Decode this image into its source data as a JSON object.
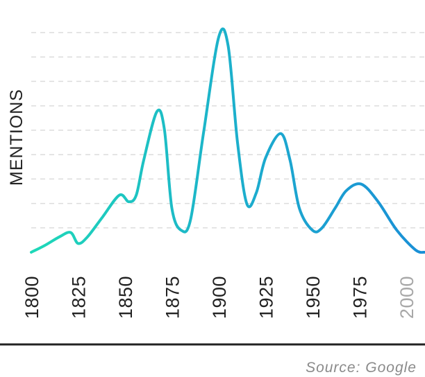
{
  "chart_data": {
    "type": "line",
    "ylabel": "MENTIONS",
    "source": "Source: Google",
    "x_ticks": [
      {
        "label": "1800",
        "value": 1800
      },
      {
        "label": "1825",
        "value": 1825
      },
      {
        "label": "1850",
        "value": 1850
      },
      {
        "label": "1875",
        "value": 1875
      },
      {
        "label": "1900",
        "value": 1900
      },
      {
        "label": "1925",
        "value": 1925
      },
      {
        "label": "1950",
        "value": 1950
      },
      {
        "label": "1975",
        "value": 1975
      },
      {
        "label": "2000",
        "value": 2000,
        "muted": true
      }
    ],
    "xlim": [
      1800,
      2010
    ],
    "ylim": [
      0,
      10
    ],
    "grid": true,
    "gradient_colors": [
      "#1ed8b8",
      "#1ca9cf",
      "#1a8fd6"
    ],
    "tick_color": "#222222",
    "muted_tick_color": "#a8a8a8",
    "series": [
      {
        "x": [
          1800,
          1807,
          1815,
          1821,
          1825,
          1830,
          1838,
          1847,
          1852,
          1856,
          1860,
          1867,
          1871,
          1875,
          1880,
          1885,
          1892,
          1900,
          1905,
          1910,
          1915,
          1920,
          1925,
          1933,
          1938,
          1943,
          1950,
          1955,
          1962,
          1968,
          1976,
          1985,
          1995,
          2005,
          2010
        ],
        "y": [
          0,
          0.3,
          0.7,
          0.9,
          0.4,
          0.7,
          1.6,
          2.6,
          2.3,
          2.6,
          4.2,
          6.4,
          5.6,
          2.0,
          1.0,
          1.5,
          5.5,
          9.8,
          9.4,
          5.0,
          2.2,
          2.7,
          4.3,
          5.4,
          4.2,
          2.0,
          1.0,
          1.1,
          2.0,
          2.8,
          3.1,
          2.3,
          1.0,
          0.1,
          0.0
        ]
      }
    ]
  }
}
